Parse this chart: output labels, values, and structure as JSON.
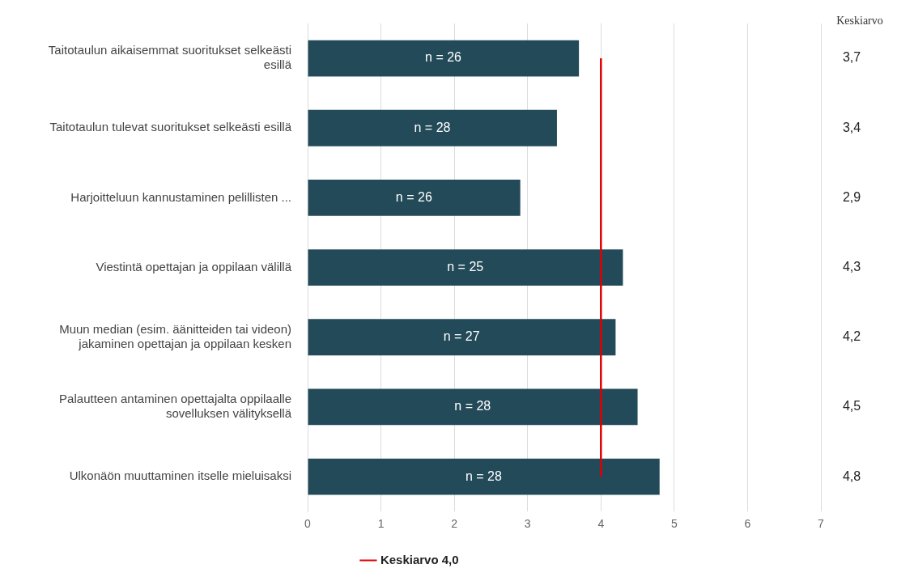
{
  "chart_data": {
    "type": "bar",
    "orientation": "horizontal",
    "categories": [
      "Taitotaulun aikaisemmat suoritukset selkeästi esillä",
      "Taitotaulun tulevat suoritukset selkeästi esillä",
      "Harjoitteluun kannustaminen pelillisten ...",
      "Viestintä opettajan ja oppilaan välillä",
      "Muun median (esim. äänitteiden tai videon) jakaminen opettajan ja oppilaan kesken",
      "Palautteen antaminen opettajalta oppilaalle sovelluksen välityksellä",
      "Ulkonäön muuttaminen itselle mieluisaksi"
    ],
    "values": [
      3.7,
      3.4,
      2.9,
      4.3,
      4.2,
      4.5,
      4.8
    ],
    "value_labels": [
      "3,7",
      "3,4",
      "2,9",
      "4,3",
      "4,2",
      "4,5",
      "4,8"
    ],
    "color": "#234a59",
    "xlim": [
      0,
      7
    ],
    "xticks": [
      0,
      1,
      2,
      3,
      4,
      5,
      6,
      7
    ],
    "grid": "x",
    "legend": "bottom",
    "ref_lines": [
      {
        "axis": "x",
        "value": 4,
        "label": "Keskiarvo 4,0",
        "color": "#e00000"
      }
    ],
    "annotations": [
      "Keskiarvo",
      "n = 26",
      "n = 28",
      "n = 26",
      "n = 25",
      "n = 27",
      "n = 28",
      "n = 28"
    ]
  }
}
